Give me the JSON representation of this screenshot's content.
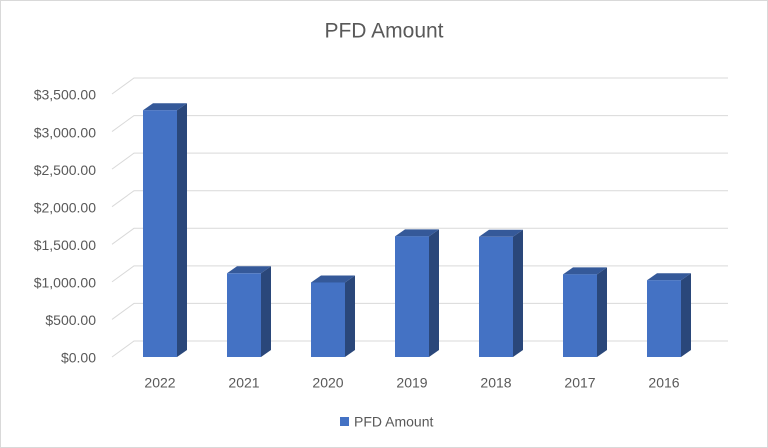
{
  "chart_data": {
    "type": "bar3d",
    "title": "PFD Amount",
    "categories": [
      "2022",
      "2021",
      "2020",
      "2019",
      "2018",
      "2017",
      "2016"
    ],
    "series": [
      {
        "name": "PFD Amount",
        "color": "#4472c4",
        "values": [
          3284,
          1114,
          992,
          1606,
          1600,
          1100,
          1022
        ]
      }
    ],
    "ylim": [
      0,
      3500
    ],
    "yticks": [
      {
        "value": 0,
        "label": "$0.00"
      },
      {
        "value": 500,
        "label": "$500.00"
      },
      {
        "value": 1000,
        "label": "$1,000.00"
      },
      {
        "value": 1500,
        "label": "$1,500.00"
      },
      {
        "value": 2000,
        "label": "$2,000.00"
      },
      {
        "value": 2500,
        "label": "$2,500.00"
      },
      {
        "value": 3000,
        "label": "$3,000.00"
      },
      {
        "value": 3500,
        "label": "$3,500.00"
      }
    ],
    "grid": true,
    "legend": "bottom"
  }
}
